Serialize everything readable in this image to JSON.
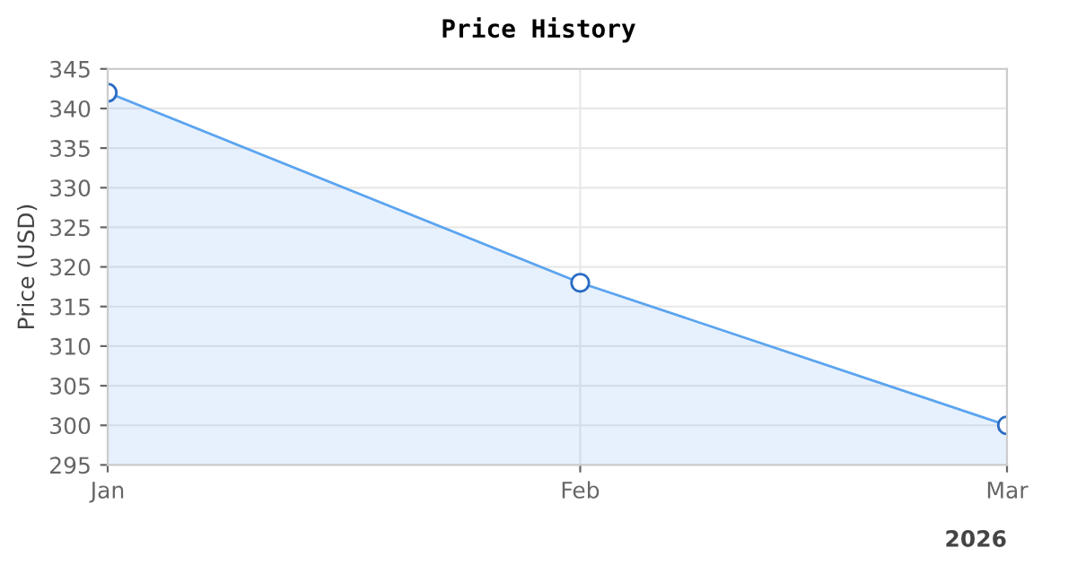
{
  "chart_data": {
    "type": "area",
    "title": "Price History",
    "ylabel": "Price (USD)",
    "x": [
      "2026-01",
      "2026-02",
      "2026-03"
    ],
    "series": [
      {
        "color": "#5ba4f0",
        "values": [
          342,
          318,
          300
        ]
      }
    ],
    "xlim": [
      "2026-01",
      "2026-03"
    ],
    "xticks": [
      {
        "value": "2026-01",
        "label": "Jan"
      },
      {
        "value": "2026-02",
        "label": "Feb"
      },
      {
        "value": "2026-03",
        "label": "Mar"
      }
    ],
    "ylim": [
      295,
      345
    ],
    "yticks": [
      295,
      300,
      305,
      310,
      315,
      320,
      325,
      330,
      335,
      340,
      345
    ],
    "annotations": [
      "2026"
    ],
    "grid": true,
    "marker": "circle",
    "line_style": "solid",
    "legend": false
  }
}
